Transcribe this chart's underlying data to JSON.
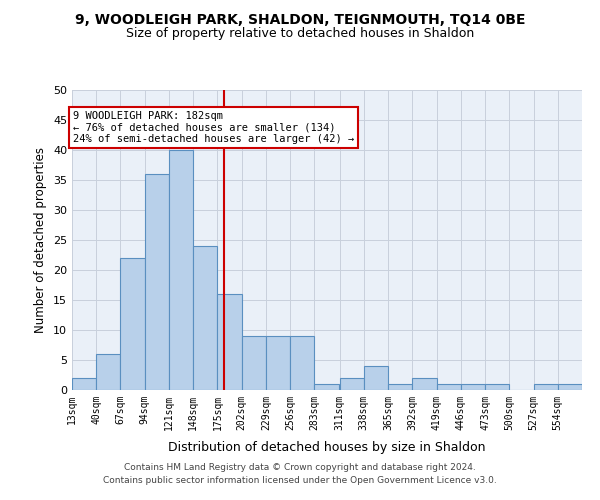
{
  "title1": "9, WOODLEIGH PARK, SHALDON, TEIGNMOUTH, TQ14 0BE",
  "title2": "Size of property relative to detached houses in Shaldon",
  "xlabel": "Distribution of detached houses by size in Shaldon",
  "ylabel": "Number of detached properties",
  "bin_labels": [
    "13sqm",
    "40sqm",
    "67sqm",
    "94sqm",
    "121sqm",
    "148sqm",
    "175sqm",
    "202sqm",
    "229sqm",
    "256sqm",
    "283sqm",
    "311sqm",
    "338sqm",
    "365sqm",
    "392sqm",
    "419sqm",
    "446sqm",
    "473sqm",
    "500sqm",
    "527sqm",
    "554sqm"
  ],
  "bin_edges": [
    13,
    40,
    67,
    94,
    121,
    148,
    175,
    202,
    229,
    256,
    283,
    311,
    338,
    365,
    392,
    419,
    446,
    473,
    500,
    527,
    554,
    581
  ],
  "bar_heights": [
    2,
    6,
    22,
    36,
    40,
    24,
    16,
    9,
    9,
    9,
    1,
    2,
    4,
    1,
    2,
    1,
    1,
    1,
    0,
    1,
    1
  ],
  "bar_color": "#b8d0ea",
  "bar_edge_color": "#5a8fc0",
  "vline_x": 182,
  "vline_color": "#cc0000",
  "annotation_line1": "9 WOODLEIGH PARK: 182sqm",
  "annotation_line2": "← 76% of detached houses are smaller (134)",
  "annotation_line3": "24% of semi-detached houses are larger (42) →",
  "annotation_box_color": "#ffffff",
  "annotation_box_edge": "#cc0000",
  "ylim": [
    0,
    50
  ],
  "yticks": [
    0,
    5,
    10,
    15,
    20,
    25,
    30,
    35,
    40,
    45,
    50
  ],
  "grid_color": "#c8d0dc",
  "bg_color": "#eaf0f8",
  "footer1": "Contains HM Land Registry data © Crown copyright and database right 2024.",
  "footer2": "Contains public sector information licensed under the Open Government Licence v3.0."
}
